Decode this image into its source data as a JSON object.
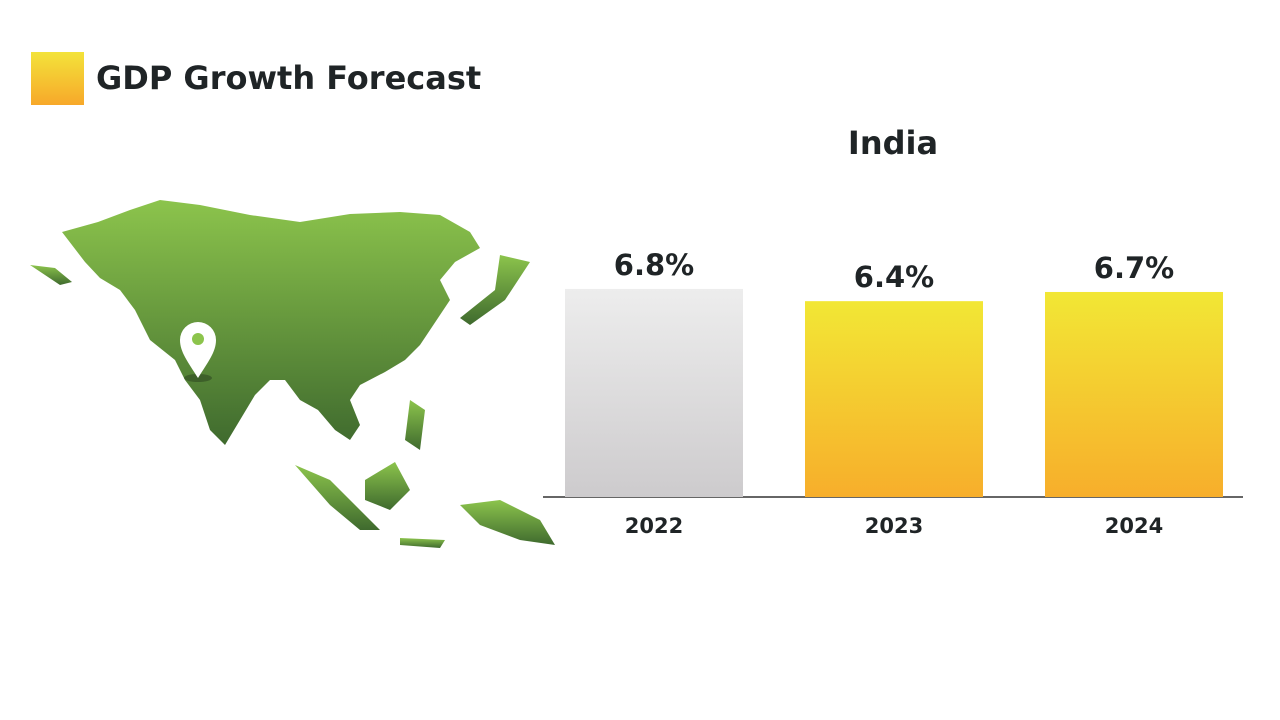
{
  "header": {
    "title": "GDP Growth Forecast"
  },
  "chart_data": {
    "type": "bar",
    "title": "India",
    "categories": [
      "2022",
      "2023",
      "2024"
    ],
    "values": [
      6.8,
      6.4,
      6.7
    ],
    "value_labels": [
      "6.8%",
      "6.4%",
      "6.7%"
    ],
    "colors": [
      [
        "#ededed",
        "#cdcbcd"
      ],
      [
        "#f2e735",
        "#f7ae2b"
      ],
      [
        "#f2e735",
        "#f7ae2b"
      ]
    ]
  }
}
